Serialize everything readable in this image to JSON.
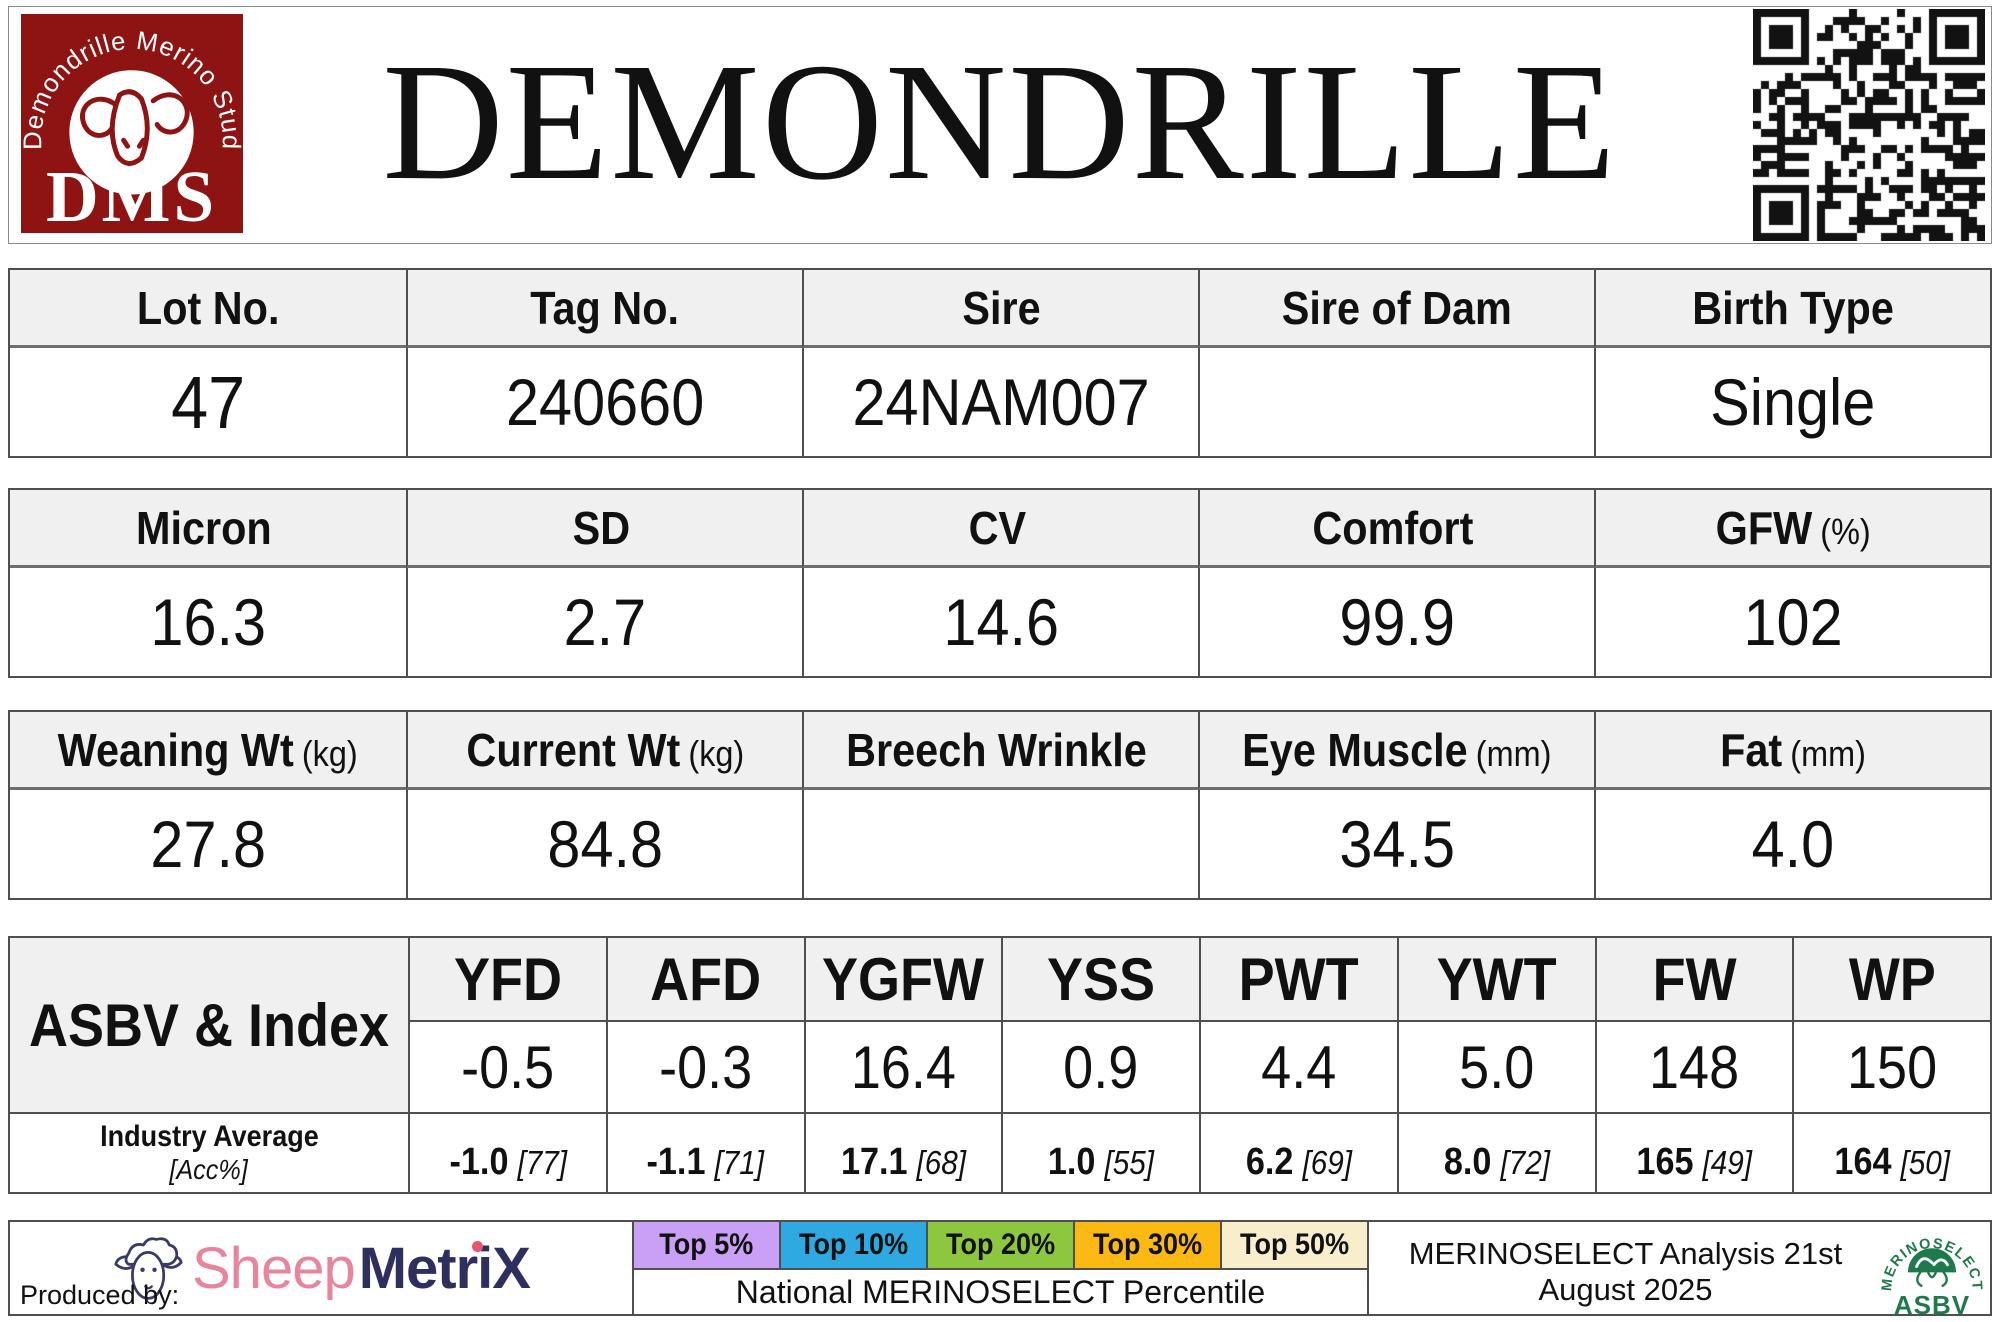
{
  "header": {
    "title": "DEMONDRILLE",
    "logo": {
      "circle_text": "Demondrille Merino Stud",
      "acronym": "DMS"
    },
    "qr_icon": "qr-code"
  },
  "identity_table": {
    "headers": [
      "Lot No.",
      "Tag No.",
      "Sire",
      "Sire of Dam",
      "Birth Type"
    ],
    "values": [
      "47",
      "240660",
      "24NAM007",
      "",
      "Single"
    ]
  },
  "wool_table": {
    "headers": [
      {
        "label": "Micron"
      },
      {
        "label": "SD"
      },
      {
        "label": "CV"
      },
      {
        "label": "Comfort"
      },
      {
        "label": "GFW",
        "unit": "(%)"
      }
    ],
    "values": [
      "16.3",
      "2.7",
      "14.6",
      "99.9",
      "102"
    ]
  },
  "body_table": {
    "headers": [
      {
        "label": "Weaning Wt",
        "unit": "(kg)"
      },
      {
        "label": "Current Wt",
        "unit": "(kg)"
      },
      {
        "label": "Breech Wrinkle"
      },
      {
        "label": "Eye Muscle",
        "unit": "(mm)"
      },
      {
        "label": "Fat",
        "unit": "(mm)"
      }
    ],
    "values": [
      "27.8",
      "84.8",
      "",
      "34.5",
      "4.0"
    ]
  },
  "asbv_table": {
    "row_label": "ASBV & Index",
    "industry_label": "Industry Average",
    "industry_sublabel": "[Acc%]",
    "columns": [
      "YFD",
      "AFD",
      "YGFW",
      "YSS",
      "PWT",
      "YWT",
      "FW",
      "WP"
    ],
    "values": [
      "-0.5",
      "-0.3",
      "16.4",
      "0.9",
      "4.4",
      "5.0",
      "148",
      "150"
    ],
    "industry": [
      {
        "value": "-1.0",
        "acc": "[77]"
      },
      {
        "value": "-1.1",
        "acc": "[71]"
      },
      {
        "value": "17.1",
        "acc": "[68]"
      },
      {
        "value": "1.0",
        "acc": "[55]"
      },
      {
        "value": "6.2",
        "acc": "[69]"
      },
      {
        "value": "8.0",
        "acc": "[72]"
      },
      {
        "value": "165",
        "acc": "[49]"
      },
      {
        "value": "164",
        "acc": "[50]"
      }
    ]
  },
  "footer": {
    "produced_by": "Produced by:",
    "brand": {
      "word1": "Sheep",
      "word2": "MetriX",
      "sheep_icon": "sheep-head-icon"
    },
    "legend": [
      {
        "label": "Top 5%",
        "color": "#c9a0f5",
        "style": "background:#c9a0f5"
      },
      {
        "label": "Top 10%",
        "color": "#2fa9e1",
        "style": "background:#2fa9e1"
      },
      {
        "label": "Top 20%",
        "color": "#8dc63f",
        "style": "background:#8dc63f"
      },
      {
        "label": "Top 30%",
        "color": "#fdb913",
        "style": "background:#fdb913"
      },
      {
        "label": "Top 50%",
        "color": "#f9eecb",
        "style": "background:#f9eecb"
      }
    ],
    "legend_caption": "National MERINOSELECT Percentile",
    "analysis_note": "MERINOSELECT Analysis 21st August 2025",
    "ms_logo": {
      "arc_text": "MERINOSELECT",
      "sub_text": "ASBV"
    }
  },
  "colors": {
    "logo_red": "#8e1414",
    "header_cell_bg": "#f0f0f0",
    "table_border": "#4f4f4f",
    "brand_pink": "#e8859d",
    "brand_navy": "#2e2f5e",
    "merinoselect_green": "#1e7a4b"
  }
}
